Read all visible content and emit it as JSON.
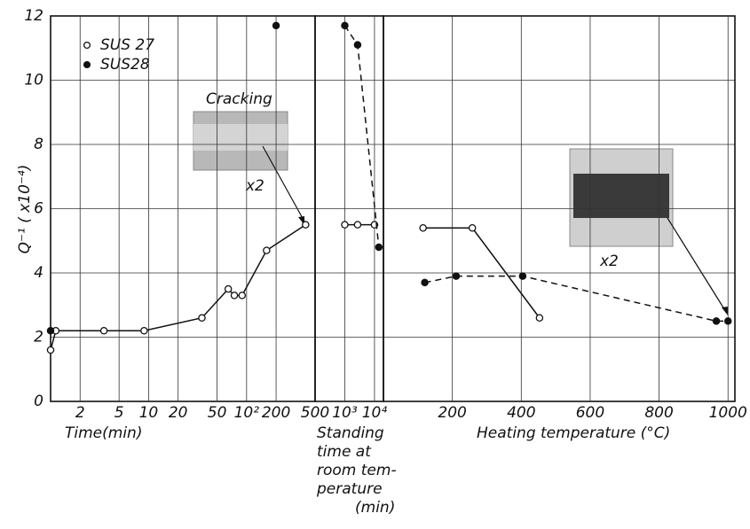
{
  "chart_data": [
    {
      "type": "line",
      "xlabel": "Time(min)",
      "ylabel": "Q⁻¹ ( x10⁻⁴)",
      "log_x": true,
      "xlim": [
        1,
        500
      ],
      "xticks": [
        2,
        5,
        10,
        20,
        50,
        {
          "value": 100,
          "label": "10²"
        },
        200,
        500
      ],
      "ylim": [
        0,
        12
      ],
      "yticks": [
        0,
        2,
        4,
        6,
        8,
        10,
        12
      ],
      "grid": true,
      "legend": "upper left",
      "annotations": [
        "Cracking",
        "x2"
      ],
      "series": [
        {
          "name": "SUS 27",
          "color": "#111111",
          "marker": "open",
          "linestyle": "solid",
          "connect": true,
          "x": [
            1,
            1.13,
            3.5,
            9,
            35,
            65,
            75,
            90,
            160,
            400
          ],
          "values": [
            1.6,
            2.2,
            2.2,
            2.2,
            2.6,
            3.5,
            3.3,
            3.3,
            4.7,
            5.5
          ]
        },
        {
          "name": "SUS28",
          "color": "#111111",
          "marker": "filled",
          "linestyle": "dashed",
          "connect": false,
          "x": [
            1,
            200
          ],
          "values": [
            2.2,
            11.7
          ]
        }
      ]
    },
    {
      "type": "line",
      "xlabel": [
        "Standing",
        "time at",
        "room tem-",
        "perature",
        "(min)"
      ],
      "log_x": true,
      "xlim": [
        100,
        20000
      ],
      "xticks": [
        {
          "value": 1000,
          "label": "10³"
        },
        {
          "value": 10000,
          "label": "10⁴"
        }
      ],
      "series": [
        {
          "color": "#111111",
          "marker": "open",
          "linestyle": "solid",
          "connect": true,
          "x": [
            1000,
            2700,
            10000
          ],
          "values": [
            5.5,
            5.5,
            5.5
          ]
        },
        {
          "color": "#111111",
          "marker": "filled",
          "linestyle": "dashed",
          "connect": true,
          "x": [
            1000,
            2700,
            14000
          ],
          "values": [
            11.7,
            11.1,
            4.8
          ]
        }
      ]
    },
    {
      "type": "line",
      "xlabel": "Heating  temperature (°C)",
      "log_x": false,
      "xlim": [
        0,
        1020
      ],
      "xticks": [
        200,
        400,
        600,
        800,
        1000
      ],
      "annotations": [
        "x2"
      ],
      "series": [
        {
          "color": "#111111",
          "marker": "open",
          "linestyle": "solid",
          "connect": true,
          "x": [
            115,
            258,
            453
          ],
          "values": [
            5.4,
            5.4,
            2.6
          ]
        },
        {
          "color": "#111111",
          "marker": "filled",
          "linestyle": "dashed",
          "connect": true,
          "x": [
            120,
            211,
            404,
            966,
            1000
          ],
          "values": [
            3.7,
            3.9,
            3.9,
            2.5,
            2.5
          ]
        }
      ]
    }
  ]
}
